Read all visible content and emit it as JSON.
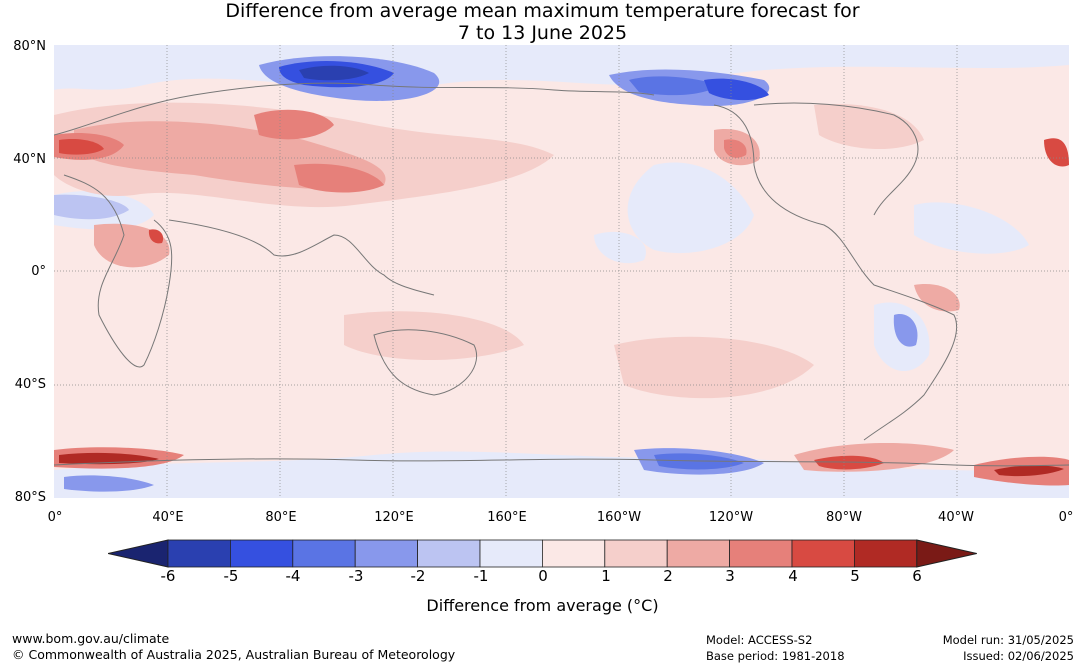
{
  "title": {
    "line1": "Difference from average mean maximum temperature forecast for",
    "line2": "7 to 13 June 2025"
  },
  "lat_labels": [
    "80°N",
    "40°N",
    "0°",
    "40°S",
    "80°S"
  ],
  "lon_labels": [
    "0°",
    "40°E",
    "80°E",
    "120°E",
    "160°E",
    "160°W",
    "120°W",
    "80°W",
    "40°W",
    "0°"
  ],
  "colorbar": {
    "ticks": [
      "-6",
      "-5",
      "-4",
      "-3",
      "-2",
      "-1",
      "0",
      "1",
      "2",
      "3",
      "4",
      "5",
      "6"
    ],
    "colors": [
      "#1a2470",
      "#2a40b0",
      "#3550e0",
      "#5a74e4",
      "#8898ec",
      "#bcc4f2",
      "#e6eafa",
      "#fbe8e6",
      "#f5cfcb",
      "#eeaaa4",
      "#e6807a",
      "#d84a42",
      "#b02a24",
      "#7a1a16"
    ],
    "label": "Difference from average (°C)"
  },
  "footer": {
    "website": "www.bom.gov.au/climate",
    "copyright": "© Commonwealth of Australia 2025, Australian Bureau of Meteorology",
    "model": "Model: ACCESS-S2",
    "base_period": "Base period: 1981-2018",
    "model_run": "Model run: 31/05/2025",
    "issued": "Issued: 02/06/2025"
  }
}
